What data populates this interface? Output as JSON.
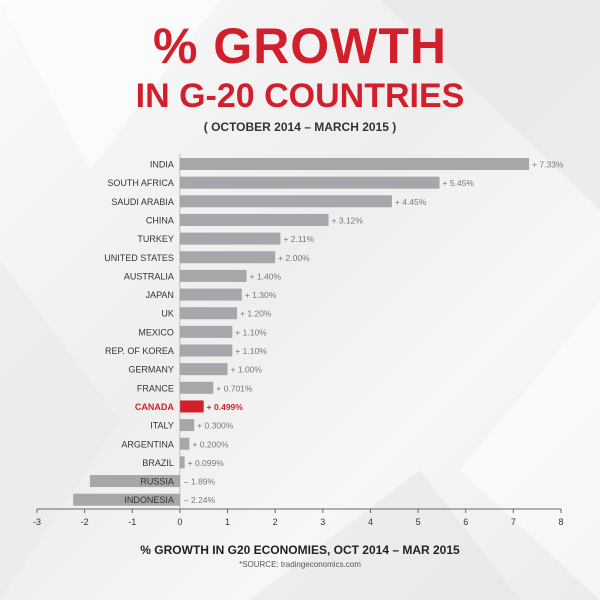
{
  "header": {
    "title_line1": "% GROWTH",
    "title_line2": "IN G-20 COUNTRIES",
    "subtitle": "( OCTOBER 2014 – MARCH 2015 )"
  },
  "footer": {
    "chart_title": "% GROWTH IN G20 ECONOMIES, OCT 2014 – MAR 2015",
    "source": "*SOURCE: tradingeconomics.com"
  },
  "colors": {
    "bar": "#a6a7aa",
    "highlight": "#d21f2b",
    "label": "#333333",
    "value_label": "#777777"
  },
  "chart_data": {
    "type": "bar",
    "orientation": "horizontal",
    "categories": [
      "INDIA",
      "SOUTH AFRICA",
      "SAUDI ARABIA",
      "CHINA",
      "TURKEY",
      "UNITED STATES",
      "AUSTRALIA",
      "JAPAN",
      "UK",
      "MEXICO",
      "REP. OF KOREA",
      "GERMANY",
      "FRANCE",
      "CANADA",
      "ITALY",
      "ARGENTINA",
      "BRAZIL",
      "RUSSIA",
      "INDONESIA"
    ],
    "values": [
      7.33,
      5.45,
      4.45,
      3.12,
      2.11,
      2.0,
      1.4,
      1.3,
      1.2,
      1.1,
      1.1,
      1.0,
      0.701,
      0.499,
      0.3,
      0.2,
      0.099,
      -1.89,
      -2.24
    ],
    "value_labels": [
      "+ 7.33%",
      "+ 5.45%",
      "+ 4.45%",
      "+ 3.12%",
      "+ 2.11%",
      "+ 2.00%",
      "+ 1.40%",
      "+ 1.30%",
      "+ 1.20%",
      "+ 1.10%",
      "+ 1.10%",
      "+ 1.00%",
      "+ 0.701%",
      "+ 0.499%",
      "+ 0.300%",
      "+ 0.200%",
      "+ 0.099%",
      "– 1.89%",
      "– 2.24%"
    ],
    "highlight": "CANADA",
    "xlim": [
      -3,
      8
    ],
    "xticks": [
      -3,
      -2,
      -1,
      0,
      1,
      2,
      3,
      4,
      5,
      6,
      7,
      8
    ],
    "title": "% GROWTH IN G20 ECONOMIES, OCT 2014 – MAR 2015",
    "xlabel": "",
    "ylabel": "",
    "grid": false
  }
}
